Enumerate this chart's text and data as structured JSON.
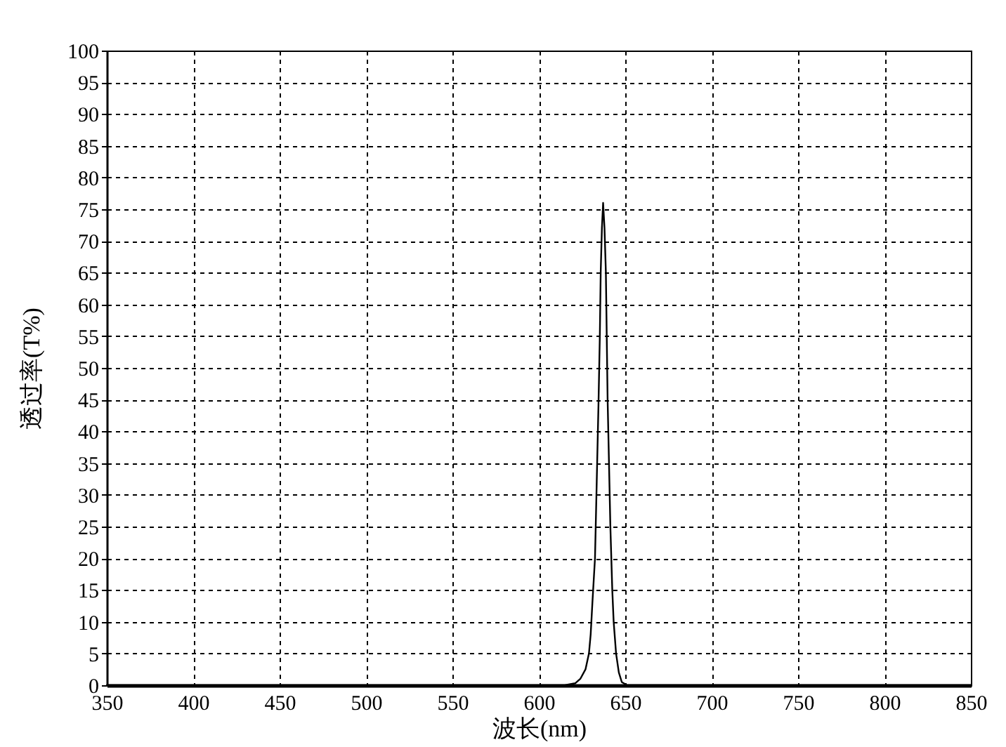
{
  "chart_data": {
    "type": "line",
    "xlabel": "波长(nm)",
    "ylabel": "透过率(T%)",
    "x": [
      350,
      615,
      621,
      624,
      627,
      629,
      630,
      631,
      632.5,
      633.5,
      634.5,
      635.3,
      635.8,
      636.5,
      637.2,
      638,
      638.8,
      639.3,
      639.8,
      640.6,
      641.4,
      642.5,
      643.3,
      644.7,
      646.3,
      648,
      651,
      850
    ],
    "series": [
      {
        "color": "#000000",
        "values": [
          0,
          0,
          0.3,
          1,
          2.5,
          5,
          8,
          13,
          20,
          32,
          44,
          55,
          65,
          72,
          76,
          72,
          65,
          55,
          45,
          35,
          25,
          15,
          10,
          5,
          2,
          0.5,
          0,
          0
        ]
      }
    ],
    "xlim": [
      350,
      850
    ],
    "ylim": [
      0,
      100
    ],
    "xticks": [
      350,
      400,
      450,
      500,
      550,
      600,
      650,
      700,
      750,
      800,
      850
    ],
    "yticks": [
      0,
      5,
      10,
      15,
      20,
      25,
      30,
      35,
      40,
      45,
      50,
      55,
      60,
      65,
      70,
      75,
      80,
      85,
      90,
      95,
      100
    ],
    "grid": true,
    "legend": false,
    "line_style": "solid"
  }
}
